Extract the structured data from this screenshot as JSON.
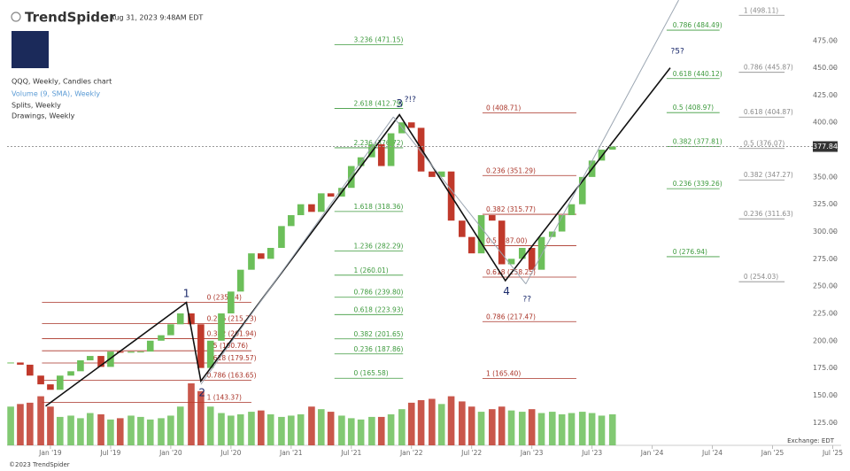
{
  "header": {
    "brand": "TrendSpider",
    "timestamp": "Aug 31, 2023 9:48AM EDT",
    "copyright": "©2023 TrendSpider",
    "exchange": "Exchange: EDT"
  },
  "chart_data": {
    "type": "candlestick",
    "x": [
      2018.67,
      2018.75,
      2018.83,
      2018.92,
      2019.0,
      2019.08,
      2019.17,
      2019.25,
      2019.33,
      2019.42,
      2019.5,
      2019.58,
      2019.67,
      2019.75,
      2019.83,
      2019.92,
      2020.0,
      2020.08,
      2020.17,
      2020.25,
      2020.33,
      2020.42,
      2020.5,
      2020.58,
      2020.67,
      2020.75,
      2020.83,
      2020.92,
      2021.0,
      2021.08,
      2021.17,
      2021.25,
      2021.33,
      2021.42,
      2021.5,
      2021.58,
      2021.67,
      2021.75,
      2021.83,
      2021.92,
      2022.0,
      2022.08,
      2022.17,
      2022.25,
      2022.33,
      2022.42,
      2022.5,
      2022.58,
      2022.67,
      2022.75,
      2022.83,
      2022.92,
      2023.0,
      2023.08,
      2023.17,
      2023.25,
      2023.33,
      2023.42,
      2023.5,
      2023.58,
      2023.67
    ],
    "series": [
      {
        "name": "QQQ, Weekly, Candles chart",
        "up_color": "#6cbf5a",
        "down_color": "#c0392b",
        "values": [
          180,
          178,
          168,
          160,
          155,
          168,
          172,
          182,
          186,
          176,
          190,
          189,
          190,
          190,
          200,
          205,
          215,
          225,
          215,
          175,
          200,
          225,
          245,
          265,
          280,
          275,
          285,
          305,
          315,
          325,
          318,
          335,
          332,
          340,
          360,
          368,
          380,
          360,
          390,
          400,
          395,
          355,
          350,
          355,
          310,
          295,
          280,
          315,
          310,
          270,
          275,
          285,
          265,
          295,
          300,
          315,
          325,
          350,
          365,
          375,
          378
        ]
      },
      {
        "name": "Volume (9, SMA), Weekly",
        "color": "#5b9bd5",
        "values": [
          300,
          320,
          330,
          380,
          300,
          220,
          230,
          210,
          250,
          240,
          200,
          210,
          230,
          220,
          200,
          210,
          230,
          300,
          480,
          420,
          300,
          250,
          230,
          240,
          260,
          270,
          240,
          220,
          230,
          240,
          300,
          280,
          260,
          230,
          210,
          200,
          220,
          220,
          240,
          280,
          330,
          350,
          360,
          320,
          380,
          340,
          300,
          260,
          280,
          300,
          270,
          260,
          280,
          250,
          260,
          240,
          250,
          260,
          250,
          230,
          240
        ]
      }
    ],
    "other_studies": [
      "Splits, Weekly",
      "Drawings, Weekly"
    ],
    "last_price": 377.84,
    "xlim": [
      2018.64,
      2025.57
    ],
    "ylim": [
      109,
      504
    ],
    "yticks": [
      {
        "value": 125,
        "label": "125.00"
      },
      {
        "value": 150,
        "label": "150.00"
      },
      {
        "value": 175,
        "label": "175.00"
      },
      {
        "value": 200,
        "label": "200.00"
      },
      {
        "value": 225,
        "label": "225.00"
      },
      {
        "value": 250,
        "label": "250.00"
      },
      {
        "value": 275,
        "label": "275.00"
      },
      {
        "value": 300,
        "label": "300.00"
      },
      {
        "value": 325,
        "label": "325.00"
      },
      {
        "value": 350,
        "label": "350.00"
      },
      {
        "value": 375,
        "label": "375.00"
      },
      {
        "value": 400,
        "label": "400.00"
      },
      {
        "value": 425,
        "label": "425.00"
      },
      {
        "value": 450,
        "label": "450.00"
      },
      {
        "value": 475,
        "label": "475.00"
      }
    ],
    "xticks": [
      {
        "value": 2019,
        "label": "Jan '19"
      },
      {
        "value": 2019.5,
        "label": "Jul '19"
      },
      {
        "value": 2020,
        "label": "Jan '20"
      },
      {
        "value": 2020.5,
        "label": "Jul '20"
      },
      {
        "value": 2021,
        "label": "Jan '21"
      },
      {
        "value": 2021.5,
        "label": "Jul '21"
      },
      {
        "value": 2022,
        "label": "Jan '22"
      },
      {
        "value": 2022.5,
        "label": "Jul '22"
      },
      {
        "value": 2023,
        "label": "Jan '23"
      },
      {
        "value": 2023.5,
        "label": "Jul '23"
      },
      {
        "value": 2024,
        "label": "Jan '24"
      },
      {
        "value": 2024.5,
        "label": "Jul '24"
      },
      {
        "value": 2025,
        "label": "Jan '25"
      },
      {
        "value": 2025.5,
        "label": "Jul '25"
      }
    ],
    "fib_groups": [
      {
        "color": "#a93226",
        "x0": 2018.93,
        "x1": 2020.67,
        "label_x": 2020.3,
        "levels": [
          {
            "value": 235.14,
            "label": "0 (235.14)"
          },
          {
            "value": 215.73,
            "label": "0.236 (215.73)"
          },
          {
            "value": 201.94,
            "label": "0.382 (201.94)"
          },
          {
            "value": 190.76,
            "label": "0.5 (190.76)"
          },
          {
            "value": 179.57,
            "label": "0.618 (179.57)"
          },
          {
            "value": 163.65,
            "label": "0.786 (163.65)"
          },
          {
            "value": 143.37,
            "label": "1 (143.37)"
          }
        ]
      },
      {
        "color": "#3d9a3d",
        "x0": 2021.36,
        "x1": 2021.93,
        "label_x": 2021.52,
        "levels": [
          {
            "value": 471.15,
            "label": "3.236 (471.15)"
          },
          {
            "value": 412.79,
            "label": "2.618 (412.79)"
          },
          {
            "value": 376.72,
            "label": "2.236 (376.72)"
          },
          {
            "value": 318.36,
            "label": "1.618 (318.36)"
          },
          {
            "value": 282.29,
            "label": "1.236 (282.29)"
          },
          {
            "value": 260.01,
            "label": "1 (260.01)"
          },
          {
            "value": 239.8,
            "label": "0.786 (239.80)"
          },
          {
            "value": 223.93,
            "label": "0.618 (223.93)"
          },
          {
            "value": 201.65,
            "label": "0.382 (201.65)"
          },
          {
            "value": 187.86,
            "label": "0.236 (187.86)"
          },
          {
            "value": 165.58,
            "label": "0 (165.58)"
          }
        ]
      },
      {
        "color": "#a93226",
        "x0": 2022.59,
        "x1": 2023.37,
        "label_x": 2022.62,
        "levels": [
          {
            "value": 408.71,
            "label": "0 (408.71)"
          },
          {
            "value": 351.29,
            "label": "0.236 (351.29)"
          },
          {
            "value": 315.77,
            "label": "0.382 (315.77)"
          },
          {
            "value": 287.0,
            "label": "0.5 (287.00)"
          },
          {
            "value": 258.25,
            "label": "0.618 (258.25)"
          },
          {
            "value": 217.47,
            "label": "0.786 (217.47)"
          },
          {
            "value": 165.4,
            "label": "1 (165.40)"
          }
        ]
      },
      {
        "color": "#3d9a3d",
        "x0": 2024.12,
        "x1": 2024.56,
        "label_x": 2024.17,
        "levels": [
          {
            "value": 484.49,
            "label": "0.786 (484.49)"
          },
          {
            "value": 440.12,
            "label": "0.618 (440.12)"
          },
          {
            "value": 408.97,
            "label": "0.5 (408.97)"
          },
          {
            "value": 377.81,
            "label": "0.382 (377.81)"
          },
          {
            "value": 339.26,
            "label": "0.236 (339.26)"
          },
          {
            "value": 276.94,
            "label": "0 (276.94)"
          }
        ]
      },
      {
        "color": "#8a8a8a",
        "x0": 2024.72,
        "x1": 2025.1,
        "label_x": 2024.76,
        "levels": [
          {
            "value": 498.11,
            "label": "1 (498.11)"
          },
          {
            "value": 445.87,
            "label": "0.786 (445.87)"
          },
          {
            "value": 404.87,
            "label": "0.618 (404.87)"
          },
          {
            "value": 376.07,
            "label": "0.5 (376.07)"
          },
          {
            "value": 347.27,
            "label": "0.382 (347.27)"
          },
          {
            "value": 311.63,
            "label": "0.236 (311.63)"
          },
          {
            "value": 254.03,
            "label": "0 (254.03)"
          }
        ]
      }
    ],
    "drawings": [
      {
        "color": "#111111",
        "x": [
          2018.96,
          2020.13,
          2020.25,
          2021.9,
          2022.78,
          2024.15
        ],
        "y": [
          140,
          235,
          163,
          407,
          255,
          450
        ]
      },
      {
        "color": "#9aa5b1",
        "x": [
          2020.25,
          2021.85
        ],
        "y": [
          160,
          405
        ]
      },
      {
        "color": "#9aa5b1",
        "x": [
          2021.85,
          2022.95
        ],
        "y": [
          405,
          252
        ]
      },
      {
        "color": "#9aa5b1",
        "x": [
          2022.95,
          2024.22
        ],
        "y": [
          252,
          512
        ]
      }
    ],
    "wave_labels": [
      {
        "text": "1",
        "x": 2020.13,
        "y": 243
      },
      {
        "text": "2",
        "x": 2020.26,
        "y": 152
      },
      {
        "text": "3",
        "x": 2021.9,
        "y": 417
      },
      {
        "text": "?!?",
        "x": 2021.99,
        "y": 421
      },
      {
        "text": "4",
        "x": 2022.79,
        "y": 245
      },
      {
        "text": "??",
        "x": 2022.96,
        "y": 238
      },
      {
        "text": "?5?",
        "x": 2024.21,
        "y": 465
      }
    ]
  }
}
